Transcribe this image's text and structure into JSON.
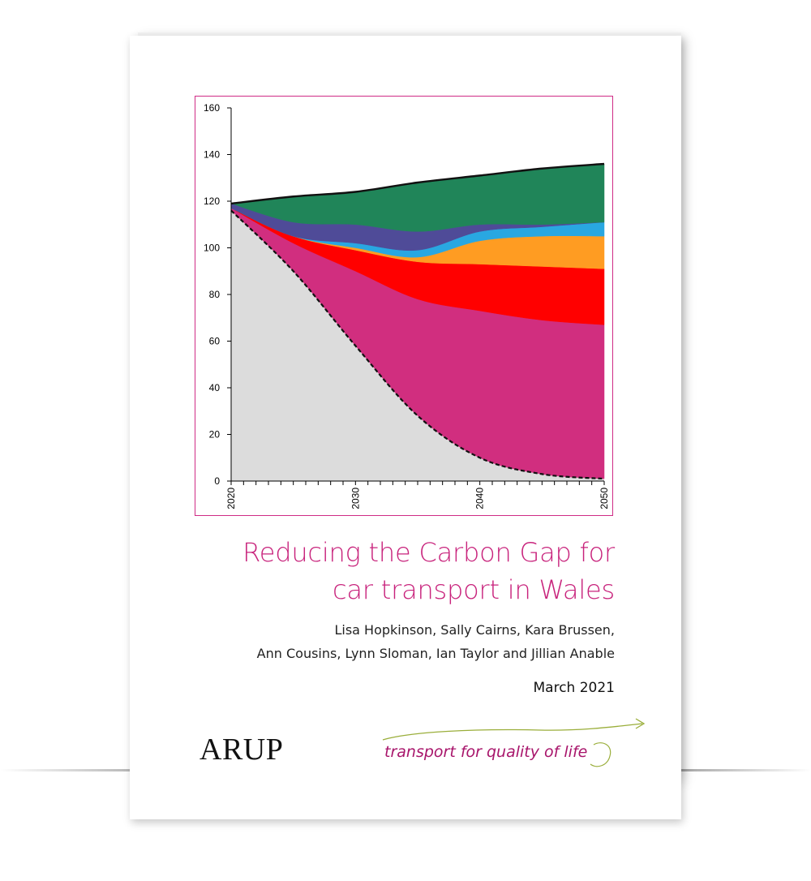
{
  "document": {
    "title_line1": "Reducing the Carbon Gap for",
    "title_line2": "car transport in Wales",
    "authors_line1": "Lisa Hopkinson, Sally Cairns, Kara Brussen,",
    "authors_line2": "Ann Cousins, Lynn Sloman, Ian Taylor and Jillian Anable",
    "date": "March 2021",
    "logo_arup": "ARUP",
    "logo_tql": "transport for quality of life",
    "accent_color": "#c8237c"
  },
  "chart_data": {
    "type": "area",
    "x": [
      2020,
      2025,
      2030,
      2035,
      2040,
      2045,
      2050
    ],
    "xticks": [
      "2020",
      "2030",
      "2040",
      "2050"
    ],
    "yticks": [
      "0",
      "20",
      "40",
      "60",
      "80",
      "100",
      "120",
      "140",
      "160"
    ],
    "ylim": [
      0,
      160
    ],
    "xlim": [
      2020,
      2050
    ],
    "grid": false,
    "baseline": [
      116,
      90,
      58,
      28,
      10,
      3,
      1
    ],
    "series": [
      {
        "color": "#d12e7f",
        "values": [
          1,
          12,
          32,
          50,
          63,
          66,
          66
        ]
      },
      {
        "color": "#ff0000",
        "values": [
          0,
          3,
          9,
          16,
          20,
          23,
          24
        ]
      },
      {
        "color": "#ff9c22",
        "values": [
          0,
          0,
          1,
          2,
          10,
          13,
          14
        ]
      },
      {
        "color": "#29a7e1",
        "values": [
          0,
          0,
          2,
          3,
          4,
          4,
          6
        ]
      },
      {
        "color": "#4f4b98",
        "values": [
          2,
          6,
          8,
          8,
          3,
          1,
          0
        ]
      },
      {
        "color": "#208559",
        "values": [
          0,
          11,
          14,
          21,
          21,
          24,
          25
        ]
      }
    ]
  }
}
